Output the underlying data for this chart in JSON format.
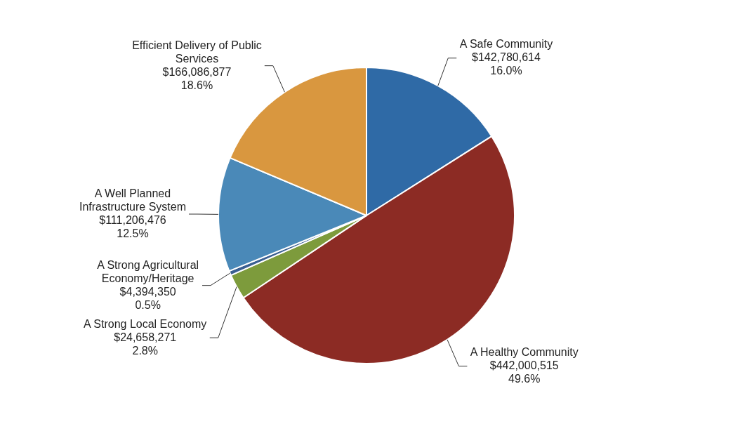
{
  "chart_data": {
    "type": "pie",
    "categories": [
      "A Safe Community",
      "A Healthy Community",
      "A Strong Local Economy",
      "A Strong Agricultural Economy/Heritage",
      "A Well Planned Infrastructure System",
      "Efficient Delivery of Public Services"
    ],
    "values": [
      142780614,
      442000515,
      24658271,
      4394350,
      111206476,
      166086877
    ],
    "colors": [
      "#2f6aa6",
      "#8c2b24",
      "#7d9b3c",
      "#3a5f92",
      "#4a89b8",
      "#d9973f"
    ],
    "value_labels": [
      "$142,780,614\n16.0%",
      "$442,000,515\n49.6%",
      "$24,658,271\n2.8%",
      "$4,394,350\n0.5%",
      "$111,206,476\n12.5%",
      "$166,086,877\n18.6%"
    ],
    "legend": false
  }
}
